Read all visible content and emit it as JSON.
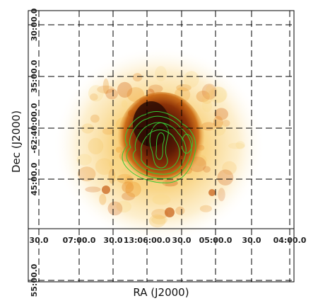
{
  "axes": {
    "xlabel": "RA (J2000)",
    "ylabel": "Dec (J2000)"
  },
  "ra_ticks": [
    "30.0",
    "07:00.0",
    "30.0",
    "13:06:00.0",
    "30.0",
    "05:00.0",
    "30.0",
    "04:00.0"
  ],
  "dec_ticks": [
    "30:00.0",
    "35:00.0",
    "-62:40:00.0",
    "45:00.0",
    "55:00.0"
  ],
  "colors": {
    "contour": "#35c935",
    "background": "#ffffff",
    "core": "#3a1205",
    "halo": "#f6c040"
  },
  "image_type": "sky image with contour overlay"
}
